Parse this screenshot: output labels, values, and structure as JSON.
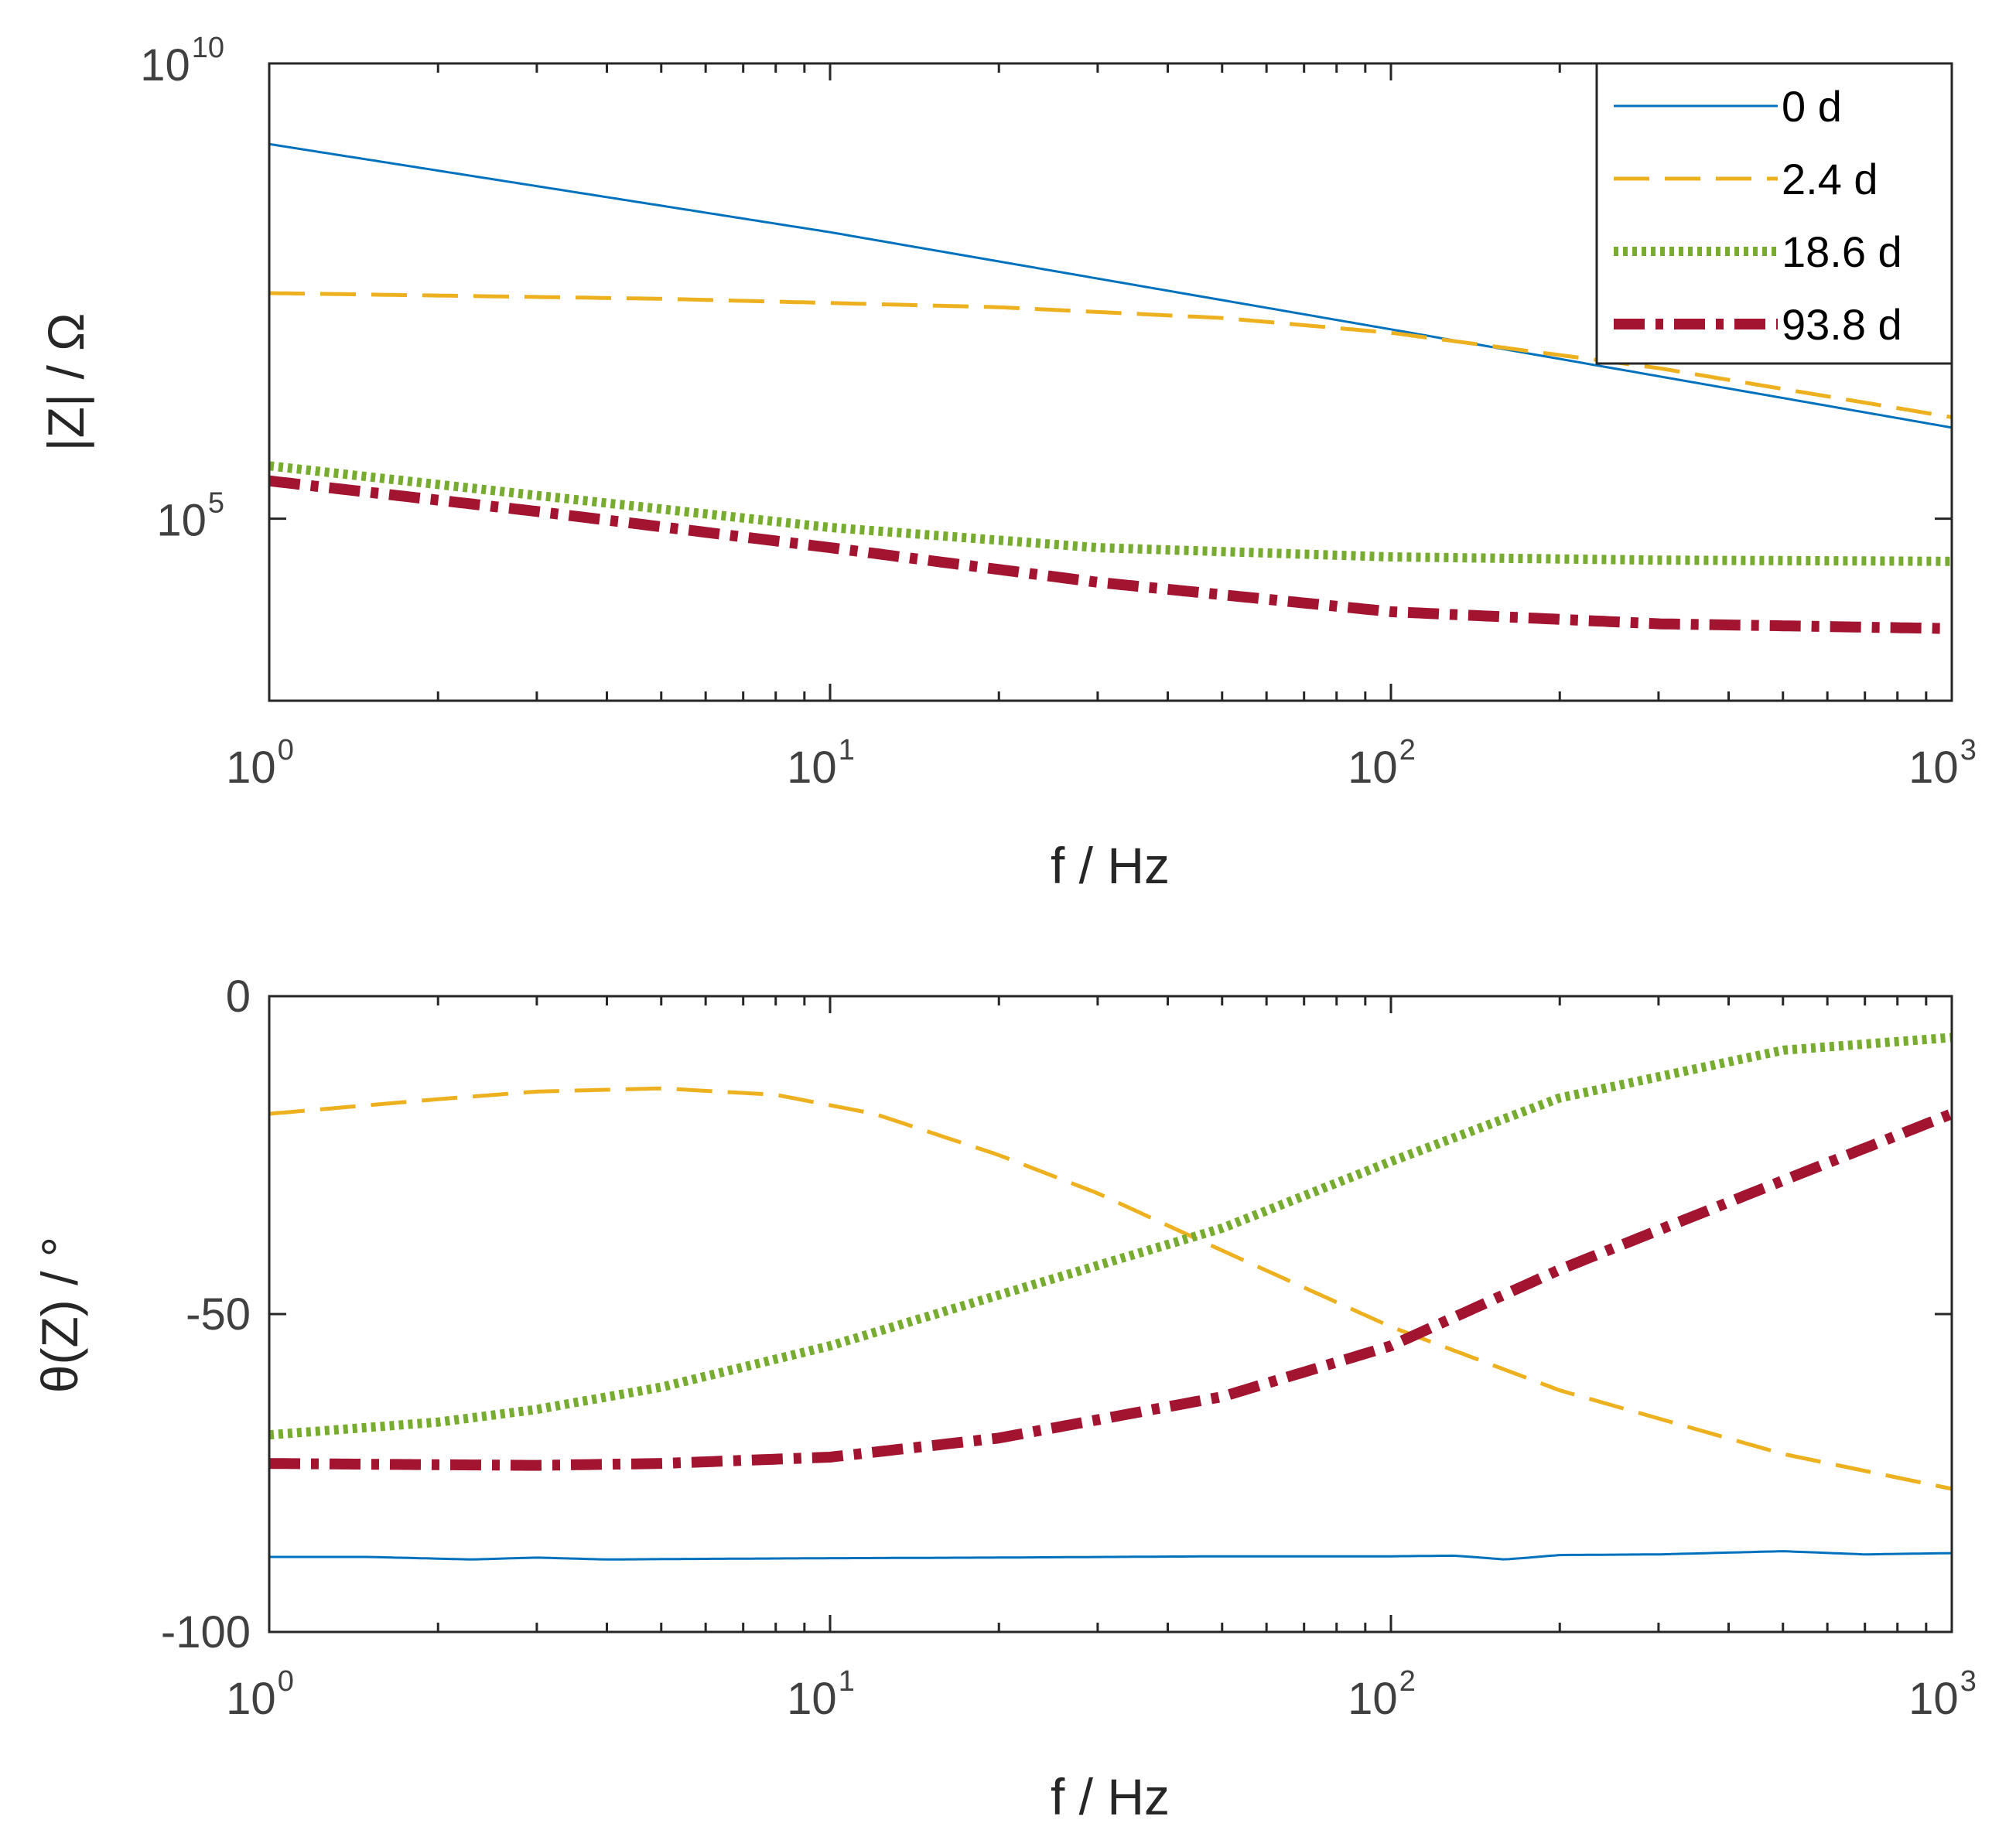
{
  "chart_data": [
    {
      "type": "line",
      "xscale": "log",
      "yscale": "log",
      "xlim": [
        1,
        1000
      ],
      "ylim": [
        1000,
        10000000000
      ],
      "xlabel": "f / Hz",
      "ylabel": "|Z| / Ω",
      "xticks": [
        {
          "base": "10",
          "exp": "0"
        },
        {
          "base": "10",
          "exp": "1"
        },
        {
          "base": "10",
          "exp": "2"
        },
        {
          "base": "10",
          "exp": "3"
        }
      ],
      "yticks": [
        {
          "base": "10",
          "exp": "5",
          "value": 100000
        },
        {
          "base": "10",
          "exp": "10",
          "value": 10000000000
        }
      ],
      "legend_position": "top-right",
      "legend": [
        "0 d",
        "2.4 d",
        "18.6 d",
        "93.8 d"
      ],
      "series": [
        {
          "name": "0 d",
          "color": "#0072BD",
          "style": "solid",
          "x": [
            1,
            10,
            100,
            1000
          ],
          "y": [
            1300000000,
            140000000,
            12000000,
            1000000
          ]
        },
        {
          "name": "2.4 d",
          "color": "#EDB120",
          "style": "dashed",
          "x": [
            1,
            5,
            20,
            50,
            100,
            300,
            1000
          ],
          "y": [
            30000000,
            26000000,
            21000000,
            16000000,
            11000000,
            4500000,
            1300000
          ]
        },
        {
          "name": "18.6 d",
          "color": "#77AC30",
          "style": "dotted",
          "x": [
            1,
            3,
            10,
            30,
            100,
            300,
            1000
          ],
          "y": [
            380000,
            180000,
            80000,
            48000,
            38000,
            35000,
            34000
          ]
        },
        {
          "name": "93.8 d",
          "color": "#A2142F",
          "style": "dashdot",
          "x": [
            1,
            3,
            10,
            30,
            100,
            300,
            1000
          ],
          "y": [
            260000,
            120000,
            48000,
            20000,
            9500,
            7000,
            6200
          ]
        }
      ]
    },
    {
      "type": "line",
      "xscale": "log",
      "yscale": "linear",
      "xlim": [
        1,
        1000
      ],
      "ylim": [
        -100,
        0
      ],
      "xlabel": "f / Hz",
      "ylabel": "θ(Z) / °",
      "xticks": [
        {
          "base": "10",
          "exp": "0"
        },
        {
          "base": "10",
          "exp": "1"
        },
        {
          "base": "10",
          "exp": "2"
        },
        {
          "base": "10",
          "exp": "3"
        }
      ],
      "yticks": [
        {
          "label": "0",
          "value": 0
        },
        {
          "label": "-50",
          "value": -50
        },
        {
          "label": "-100",
          "value": -100
        }
      ],
      "series": [
        {
          "name": "0 d",
          "color": "#0072BD",
          "style": "solid",
          "x": [
            1,
            1.5,
            2.3,
            3,
            4,
            6,
            10,
            20,
            50,
            100,
            130,
            160,
            200,
            300,
            500,
            700,
            1000
          ],
          "y": [
            -88.2,
            -88.2,
            -88.6,
            -88.3,
            -88.6,
            -88.5,
            -88.4,
            -88.3,
            -88.1,
            -88.1,
            -88.0,
            -88.6,
            -87.9,
            -87.8,
            -87.3,
            -87.8,
            -87.6
          ]
        },
        {
          "name": "2.4 d",
          "color": "#EDB120",
          "style": "dashed",
          "x": [
            1,
            2,
            3,
            5,
            8,
            12,
            20,
            30,
            50,
            100,
            200,
            500,
            1000
          ],
          "y": [
            -18.5,
            -16.2,
            -15.0,
            -14.5,
            -15.5,
            -18.5,
            -25.0,
            -31.0,
            -40.0,
            -52.0,
            -62.0,
            -72.0,
            -77.5
          ]
        },
        {
          "name": "18.6 d",
          "color": "#77AC30",
          "style": "dotted",
          "x": [
            1,
            2,
            3,
            5,
            10,
            20,
            50,
            100,
            200,
            500,
            1000
          ],
          "y": [
            -69.0,
            -67.0,
            -65.0,
            -61.5,
            -55.0,
            -47.0,
            -36.5,
            -26.0,
            -16.0,
            -8.5,
            -6.5
          ]
        },
        {
          "name": "93.8 d",
          "color": "#A2142F",
          "style": "dashdot",
          "x": [
            1,
            2,
            3,
            5,
            10,
            20,
            50,
            100,
            200,
            500,
            1000
          ],
          "y": [
            -73.5,
            -73.7,
            -73.8,
            -73.5,
            -72.5,
            -69.5,
            -63.0,
            -55.0,
            -43.0,
            -29.0,
            -18.5
          ]
        }
      ]
    }
  ]
}
